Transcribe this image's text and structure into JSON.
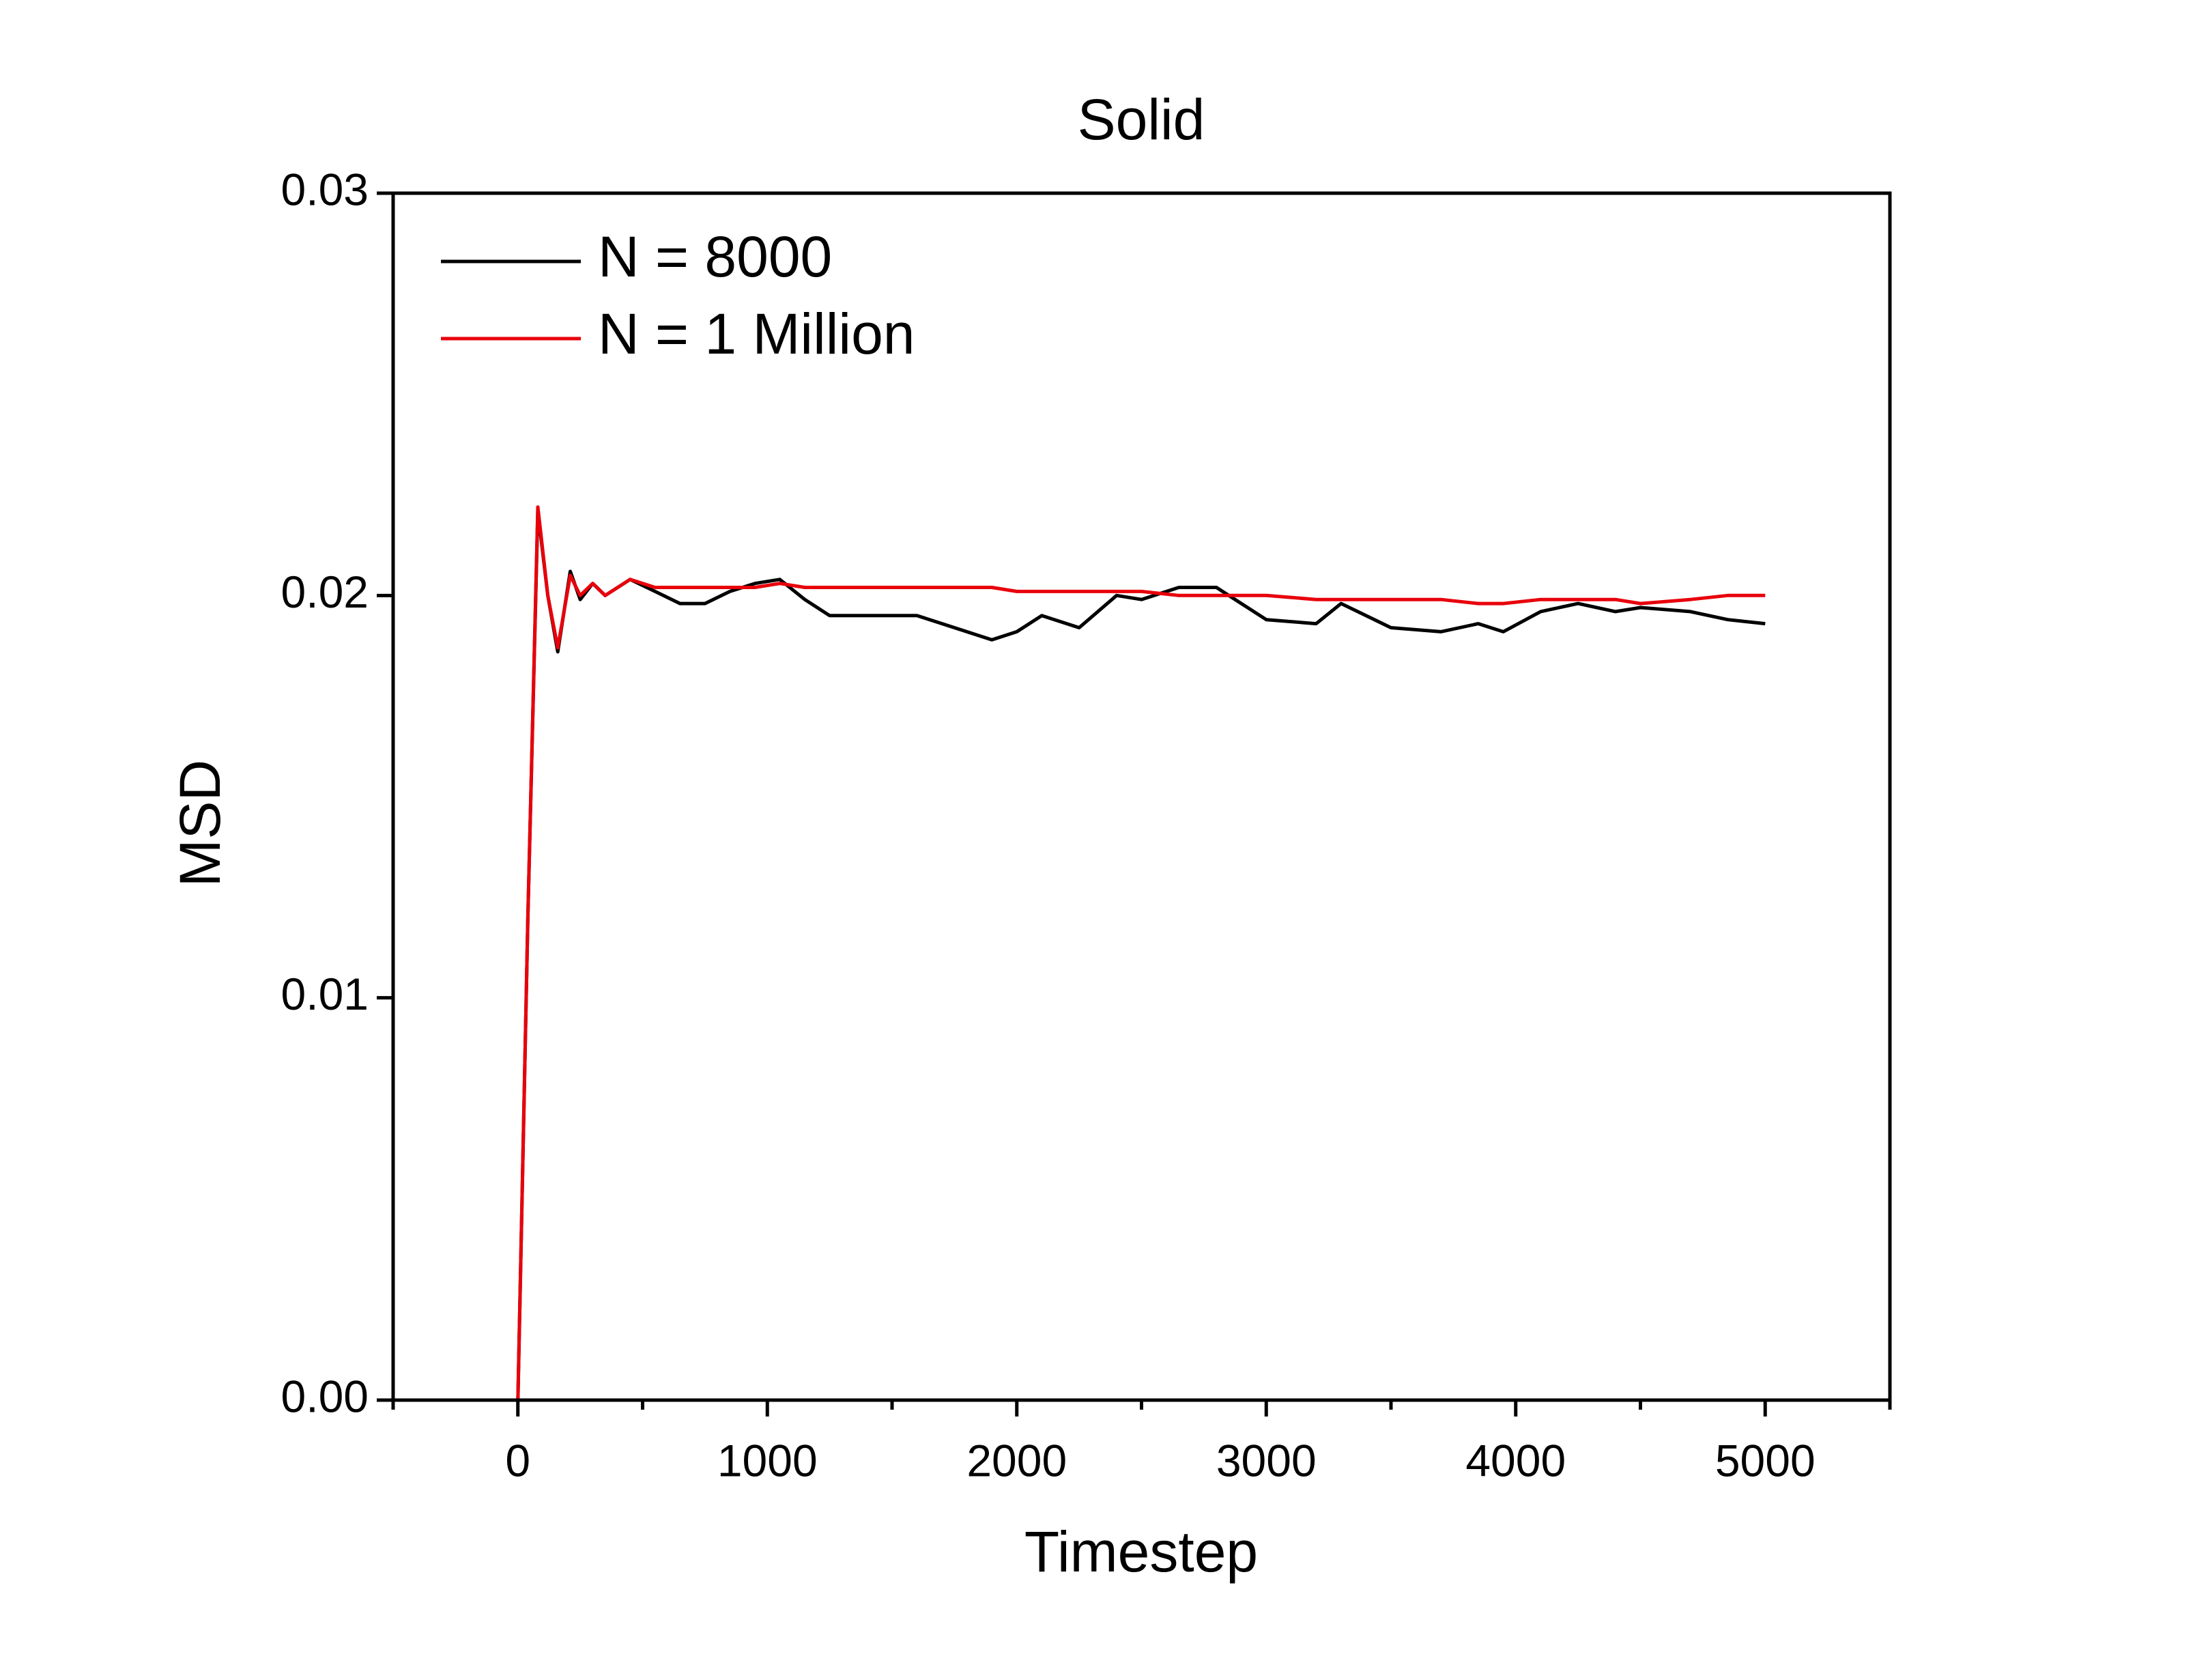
{
  "chart_data": {
    "type": "line",
    "title": "Solid",
    "x_label": "Timestep",
    "y_label": "MSD",
    "x": [
      0,
      40,
      80,
      120,
      160,
      210,
      250,
      300,
      350,
      450,
      550,
      650,
      750,
      850,
      950,
      1050,
      1150,
      1250,
      1400,
      1600,
      1750,
      1900,
      2000,
      2100,
      2250,
      2400,
      2500,
      2650,
      2800,
      2900,
      3000,
      3200,
      3300,
      3500,
      3700,
      3850,
      3950,
      4100,
      4250,
      4400,
      4500,
      4700,
      4850,
      5000
    ],
    "series": [
      {
        "name": "N = 8000",
        "color": "#000000",
        "values": [
          0,
          0.012,
          0.0221,
          0.02,
          0.0186,
          0.0206,
          0.0199,
          0.0203,
          0.02,
          0.0204,
          0.0201,
          0.0198,
          0.0198,
          0.0201,
          0.0203,
          0.0204,
          0.0199,
          0.0195,
          0.0195,
          0.0195,
          0.0192,
          0.0189,
          0.0191,
          0.0195,
          0.0192,
          0.02,
          0.0199,
          0.0202,
          0.0202,
          0.0198,
          0.0194,
          0.0193,
          0.0198,
          0.0192,
          0.0191,
          0.0193,
          0.0191,
          0.0196,
          0.0198,
          0.0196,
          0.0197,
          0.0196,
          0.0194,
          0.0193
        ]
      },
      {
        "name": "N = 1 Million",
        "color": "#e8000b",
        "values": [
          0,
          0.012,
          0.0222,
          0.02,
          0.0187,
          0.0205,
          0.02,
          0.0203,
          0.02,
          0.0204,
          0.0202,
          0.0202,
          0.0202,
          0.0202,
          0.0202,
          0.0203,
          0.0202,
          0.0202,
          0.0202,
          0.0202,
          0.0202,
          0.0202,
          0.0201,
          0.0201,
          0.0201,
          0.0201,
          0.0201,
          0.02,
          0.02,
          0.02,
          0.02,
          0.0199,
          0.0199,
          0.0199,
          0.0199,
          0.0198,
          0.0198,
          0.0199,
          0.0199,
          0.0199,
          0.0198,
          0.0199,
          0.02,
          0.02
        ]
      }
    ],
    "xlim": [
      -500,
      5500
    ],
    "xticks": [
      0,
      1000,
      2000,
      3000,
      4000,
      5000
    ],
    "xminorticks": [
      -500,
      500,
      1500,
      2500,
      3500,
      4500,
      5500
    ],
    "ylim": [
      0,
      0.03
    ],
    "yticks": [
      {
        "value": 0,
        "label": "0.00"
      },
      0.01,
      0.02,
      0.03
    ],
    "grid": false,
    "legend": "upper left"
  }
}
